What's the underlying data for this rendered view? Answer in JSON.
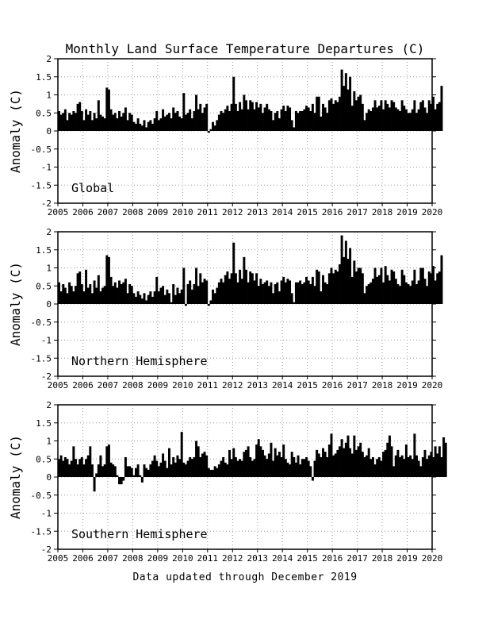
{
  "chart_data": {
    "type": "bar",
    "title": "Monthly Land Surface Temperature Departures (C)",
    "footer": "Data updated through December 2019",
    "ylabel": "Anomaly (C)",
    "ylim": [
      -2,
      2
    ],
    "yticks": [
      "2",
      "1.5",
      "1",
      "0.5",
      "0",
      "-0.5",
      "-1",
      "-1.5",
      "-2"
    ],
    "xlim": [
      2005,
      2020
    ],
    "xticks": [
      "2005",
      "2006",
      "2007",
      "2008",
      "2009",
      "2010",
      "2011",
      "2012",
      "2013",
      "2014",
      "2015",
      "2016",
      "2017",
      "2018",
      "2019",
      "2020"
    ],
    "grid": true,
    "bar_color": "#000000",
    "panels": [
      {
        "label": "Global",
        "start": "2005-01",
        "values": [
          0.55,
          0.45,
          0.5,
          0.6,
          0.3,
          0.5,
          0.45,
          0.55,
          0.5,
          0.75,
          0.8,
          0.55,
          0.3,
          0.6,
          0.45,
          0.55,
          0.3,
          0.5,
          0.35,
          0.85,
          0.45,
          0.4,
          0.35,
          1.2,
          1.15,
          0.6,
          0.45,
          0.5,
          0.35,
          0.55,
          0.4,
          0.5,
          0.65,
          0.3,
          0.5,
          0.45,
          0.25,
          0.2,
          0.35,
          0.2,
          0.15,
          0.3,
          0.1,
          0.25,
          0.3,
          0.2,
          0.35,
          0.55,
          0.3,
          0.35,
          0.6,
          0.4,
          0.45,
          0.5,
          0.35,
          0.65,
          0.5,
          0.55,
          0.4,
          0.35,
          1.05,
          0.45,
          0.5,
          0.6,
          0.35,
          0.55,
          1.0,
          0.6,
          0.75,
          0.5,
          0.65,
          0.75,
          -0.05,
          0.05,
          0.25,
          0.15,
          0.3,
          0.45,
          0.55,
          0.5,
          0.6,
          0.7,
          0.55,
          0.75,
          1.5,
          0.75,
          0.55,
          0.8,
          0.6,
          1.0,
          0.85,
          0.6,
          0.85,
          0.8,
          0.6,
          0.8,
          0.65,
          0.75,
          0.5,
          0.65,
          0.75,
          0.6,
          0.55,
          0.3,
          0.5,
          0.55,
          0.35,
          0.6,
          0.7,
          0.55,
          0.7,
          0.65,
          0.3,
          0.1,
          0.55,
          0.5,
          0.55,
          0.55,
          0.6,
          0.7,
          0.65,
          0.55,
          0.75,
          0.5,
          0.95,
          0.95,
          0.4,
          0.75,
          0.65,
          0.5,
          0.85,
          0.9,
          0.75,
          0.85,
          0.8,
          0.95,
          1.7,
          1.25,
          1.6,
          1.15,
          1.5,
          0.7,
          1.1,
          0.85,
          0.95,
          1.0,
          0.75,
          0.3,
          0.5,
          0.6,
          0.55,
          0.65,
          0.85,
          0.65,
          0.7,
          0.85,
          0.6,
          0.85,
          0.75,
          0.65,
          0.85,
          0.8,
          0.65,
          0.6,
          0.55,
          0.85,
          0.7,
          0.6,
          0.5,
          0.5,
          0.6,
          0.85,
          0.5,
          0.6,
          0.8,
          0.85,
          0.65,
          0.5,
          0.85,
          0.75,
          0.95,
          0.6,
          0.75,
          0.8,
          1.25
        ]
      },
      {
        "label": "Northern Hemisphere",
        "start": "2005-01",
        "values": [
          0.6,
          0.35,
          0.55,
          0.45,
          0.3,
          0.6,
          0.5,
          0.35,
          0.5,
          0.85,
          0.9,
          0.55,
          0.35,
          0.95,
          0.45,
          0.55,
          0.3,
          0.65,
          0.45,
          0.8,
          0.35,
          0.45,
          0.5,
          1.35,
          1.3,
          0.75,
          0.5,
          0.6,
          0.45,
          0.65,
          0.55,
          0.6,
          0.7,
          0.3,
          0.55,
          0.5,
          0.3,
          0.2,
          0.35,
          0.25,
          0.15,
          0.3,
          0.1,
          0.25,
          0.35,
          0.2,
          0.35,
          0.75,
          0.35,
          0.45,
          0.5,
          0.25,
          0.4,
          0.3,
          0.05,
          0.55,
          0.25,
          0.45,
          0.3,
          0.4,
          1.0,
          -0.05,
          0.55,
          0.65,
          0.4,
          0.55,
          1.0,
          0.5,
          0.85,
          0.6,
          0.7,
          0.65,
          -0.05,
          0.1,
          0.4,
          0.3,
          0.45,
          0.6,
          0.7,
          0.6,
          0.8,
          0.9,
          0.7,
          0.85,
          1.7,
          0.85,
          0.6,
          0.95,
          0.7,
          1.3,
          0.95,
          0.6,
          0.9,
          0.85,
          0.65,
          0.85,
          0.5,
          0.7,
          0.55,
          0.6,
          0.65,
          0.5,
          0.6,
          0.3,
          0.55,
          0.6,
          0.35,
          0.65,
          0.75,
          0.6,
          0.7,
          0.65,
          0.3,
          0.05,
          0.6,
          0.6,
          0.65,
          0.55,
          0.6,
          0.75,
          0.65,
          0.55,
          0.75,
          0.5,
          0.95,
          0.9,
          0.35,
          0.8,
          0.6,
          0.55,
          0.85,
          1.0,
          0.85,
          0.95,
          0.9,
          1.1,
          1.9,
          1.3,
          1.75,
          1.25,
          1.55,
          0.75,
          1.2,
          0.9,
          1.0,
          1.0,
          0.85,
          0.3,
          0.5,
          0.55,
          0.6,
          0.7,
          1.0,
          0.75,
          0.8,
          1.0,
          0.6,
          1.05,
          0.8,
          0.65,
          0.95,
          0.9,
          0.7,
          0.55,
          0.5,
          0.95,
          0.8,
          0.6,
          0.55,
          0.5,
          0.65,
          0.95,
          0.55,
          0.65,
          1.0,
          1.0,
          0.7,
          0.5,
          0.9,
          0.85,
          1.05,
          0.65,
          0.85,
          0.9,
          1.35
        ]
      },
      {
        "label": "Southern Hemisphere",
        "start": "2005-01",
        "values": [
          0.5,
          0.6,
          0.45,
          0.55,
          0.5,
          0.35,
          0.45,
          0.85,
          0.5,
          0.35,
          0.5,
          0.55,
          0.35,
          0.5,
          0.6,
          0.85,
          0.35,
          -0.4,
          0.1,
          0.35,
          0.6,
          0.3,
          0.35,
          0.85,
          0.9,
          0.4,
          0.35,
          0.3,
          0.05,
          -0.2,
          -0.2,
          -0.1,
          0.55,
          0.3,
          0.3,
          0.25,
          0.05,
          0.25,
          0.35,
          0.05,
          -0.15,
          0.35,
          0.25,
          0.2,
          0.35,
          0.45,
          0.6,
          0.45,
          0.3,
          0.4,
          0.65,
          0.45,
          0.25,
          0.8,
          0.35,
          0.55,
          0.4,
          0.6,
          0.5,
          1.25,
          0.4,
          0.35,
          0.45,
          0.55,
          0.5,
          0.55,
          1.0,
          0.85,
          0.55,
          0.65,
          0.7,
          0.6,
          0.25,
          0.2,
          0.2,
          0.3,
          0.25,
          0.35,
          0.45,
          0.55,
          0.4,
          0.35,
          0.75,
          0.5,
          0.8,
          0.55,
          0.45,
          0.5,
          0.45,
          0.7,
          0.75,
          0.85,
          0.55,
          0.45,
          0.5,
          0.9,
          1.05,
          0.85,
          0.75,
          0.6,
          0.5,
          0.65,
          0.95,
          0.45,
          0.8,
          0.6,
          0.7,
          0.55,
          0.9,
          0.5,
          0.4,
          0.35,
          0.7,
          0.55,
          0.4,
          0.6,
          0.35,
          0.5,
          0.5,
          0.55,
          0.45,
          0.3,
          -0.1,
          0.45,
          0.75,
          0.65,
          0.55,
          0.8,
          0.7,
          0.55,
          0.9,
          1.2,
          0.6,
          0.65,
          0.75,
          0.85,
          1.05,
          0.8,
          0.95,
          1.15,
          0.8,
          0.65,
          1.15,
          0.75,
          0.85,
          0.95,
          0.7,
          0.55,
          0.6,
          0.8,
          0.5,
          0.55,
          0.35,
          0.5,
          0.55,
          0.45,
          0.7,
          0.75,
          0.95,
          1.15,
          0.85,
          0.3,
          0.6,
          0.75,
          0.55,
          0.6,
          0.5,
          0.9,
          0.55,
          0.6,
          0.5,
          1.2,
          0.6,
          0.45,
          0.3,
          0.55,
          0.75,
          0.5,
          0.6,
          0.7,
          0.55,
          0.85,
          0.65,
          0.85,
          0.55,
          1.1,
          0.95
        ]
      }
    ]
  }
}
